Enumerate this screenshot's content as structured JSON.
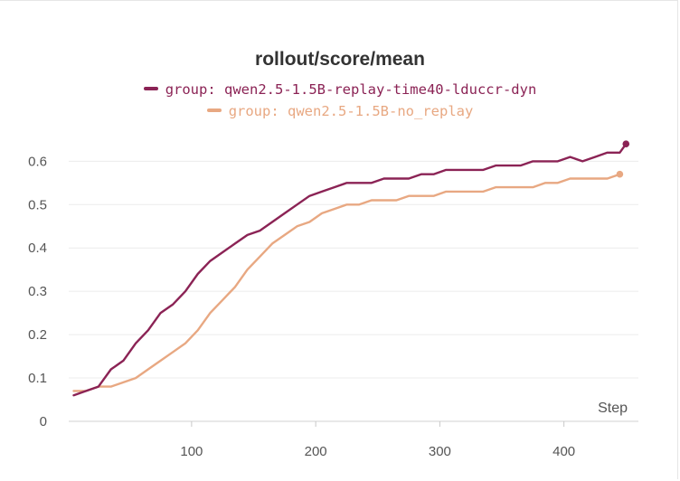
{
  "chart_data": {
    "type": "line",
    "title": "rollout/score/mean",
    "xlabel": "Step",
    "ylabel": "",
    "xlim": [
      1,
      460
    ],
    "ylim": [
      0,
      0.68
    ],
    "xticks": [
      100,
      200,
      300,
      400
    ],
    "yticks": [
      0,
      0.1,
      0.2,
      0.3,
      0.4,
      0.5,
      0.6
    ],
    "ytick_labels": [
      "0",
      "0.1",
      "0.2",
      "0.3",
      "0.4",
      "0.5",
      "0.6"
    ],
    "grid": true,
    "legend_position": "top",
    "series": [
      {
        "name": "group: qwen2.5-1.5B-replay-time40-lduccr-dyn",
        "color": "#8b2355",
        "x": [
          5,
          15,
          25,
          35,
          45,
          55,
          65,
          75,
          85,
          95,
          105,
          115,
          125,
          135,
          145,
          155,
          165,
          175,
          185,
          195,
          205,
          215,
          225,
          235,
          245,
          255,
          265,
          275,
          285,
          295,
          305,
          315,
          325,
          335,
          345,
          355,
          365,
          375,
          385,
          395,
          405,
          415,
          425,
          435,
          445,
          450
        ],
        "y": [
          0.06,
          0.07,
          0.08,
          0.12,
          0.14,
          0.18,
          0.21,
          0.25,
          0.27,
          0.3,
          0.34,
          0.37,
          0.39,
          0.41,
          0.43,
          0.44,
          0.46,
          0.48,
          0.5,
          0.52,
          0.53,
          0.54,
          0.55,
          0.55,
          0.55,
          0.56,
          0.56,
          0.56,
          0.57,
          0.57,
          0.58,
          0.58,
          0.58,
          0.58,
          0.59,
          0.59,
          0.59,
          0.6,
          0.6,
          0.6,
          0.61,
          0.6,
          0.61,
          0.62,
          0.62,
          0.64
        ]
      },
      {
        "name": "group: qwen2.5-1.5B-no_replay",
        "color": "#e8a882",
        "x": [
          5,
          15,
          25,
          35,
          45,
          55,
          65,
          75,
          85,
          95,
          105,
          115,
          125,
          135,
          145,
          155,
          165,
          175,
          185,
          195,
          205,
          215,
          225,
          235,
          245,
          255,
          265,
          275,
          285,
          295,
          305,
          315,
          325,
          335,
          345,
          355,
          365,
          375,
          385,
          395,
          405,
          415,
          425,
          435,
          445
        ],
        "y": [
          0.07,
          0.07,
          0.08,
          0.08,
          0.09,
          0.1,
          0.12,
          0.14,
          0.16,
          0.18,
          0.21,
          0.25,
          0.28,
          0.31,
          0.35,
          0.38,
          0.41,
          0.43,
          0.45,
          0.46,
          0.48,
          0.49,
          0.5,
          0.5,
          0.51,
          0.51,
          0.51,
          0.52,
          0.52,
          0.52,
          0.53,
          0.53,
          0.53,
          0.53,
          0.54,
          0.54,
          0.54,
          0.54,
          0.55,
          0.55,
          0.56,
          0.56,
          0.56,
          0.56,
          0.57
        ]
      }
    ]
  }
}
